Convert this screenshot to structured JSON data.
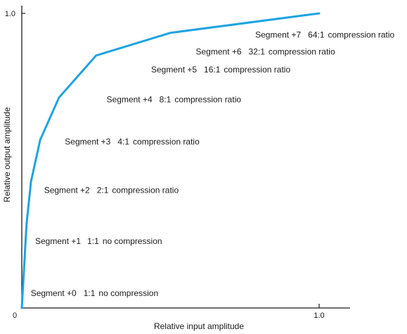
{
  "chart_data": {
    "type": "line",
    "title": "",
    "xlabel": "Relative input amplitude",
    "ylabel": "Relative output amplitude",
    "xlim": [
      0,
      1.0
    ],
    "ylim": [
      0,
      1.0
    ],
    "grid": false,
    "line_color": "#1ea3e0",
    "x_ticks": [
      {
        "value": 0,
        "label": "0"
      },
      {
        "value": 1.0,
        "label": "1.0"
      }
    ],
    "y_ticks": [
      {
        "value": 0,
        "label": "0"
      },
      {
        "value": 1.0,
        "label": "1.0"
      }
    ],
    "series": [
      {
        "x": [
          0,
          0.016,
          0.031,
          0.062,
          0.125,
          0.25,
          0.5,
          1.0
        ],
        "y": [
          0,
          0.286,
          0.429,
          0.571,
          0.714,
          0.857,
          0.934,
          1.0
        ]
      }
    ],
    "segments": [
      {
        "label": "Segment +0",
        "ratio": "1:1",
        "desc": "no compression",
        "x": 0.03,
        "y": 0.04
      },
      {
        "label": "Segment +1",
        "ratio": "1:1",
        "desc": "no compression",
        "x": 0.045,
        "y": 0.217
      },
      {
        "label": "Segment +2",
        "ratio": "2:1",
        "desc": "compression ratio",
        "x": 0.075,
        "y": 0.39
      },
      {
        "label": "Segment +3",
        "ratio": "4:1",
        "desc": "compression ratio",
        "x": 0.145,
        "y": 0.555
      },
      {
        "label": "Segment +4",
        "ratio": "8:1",
        "desc": "compression ratio",
        "x": 0.285,
        "y": 0.698
      },
      {
        "label": "Segment +5",
        "ratio": "16:1",
        "desc": "compression ratio",
        "x": 0.435,
        "y": 0.8
      },
      {
        "label": "Segment +6",
        "ratio": "32:1",
        "desc": "compression ratio",
        "x": 0.585,
        "y": 0.86
      },
      {
        "label": "Segment +7",
        "ratio": "64:1",
        "desc": "compression ratio",
        "x": 0.785,
        "y": 0.918
      }
    ]
  }
}
